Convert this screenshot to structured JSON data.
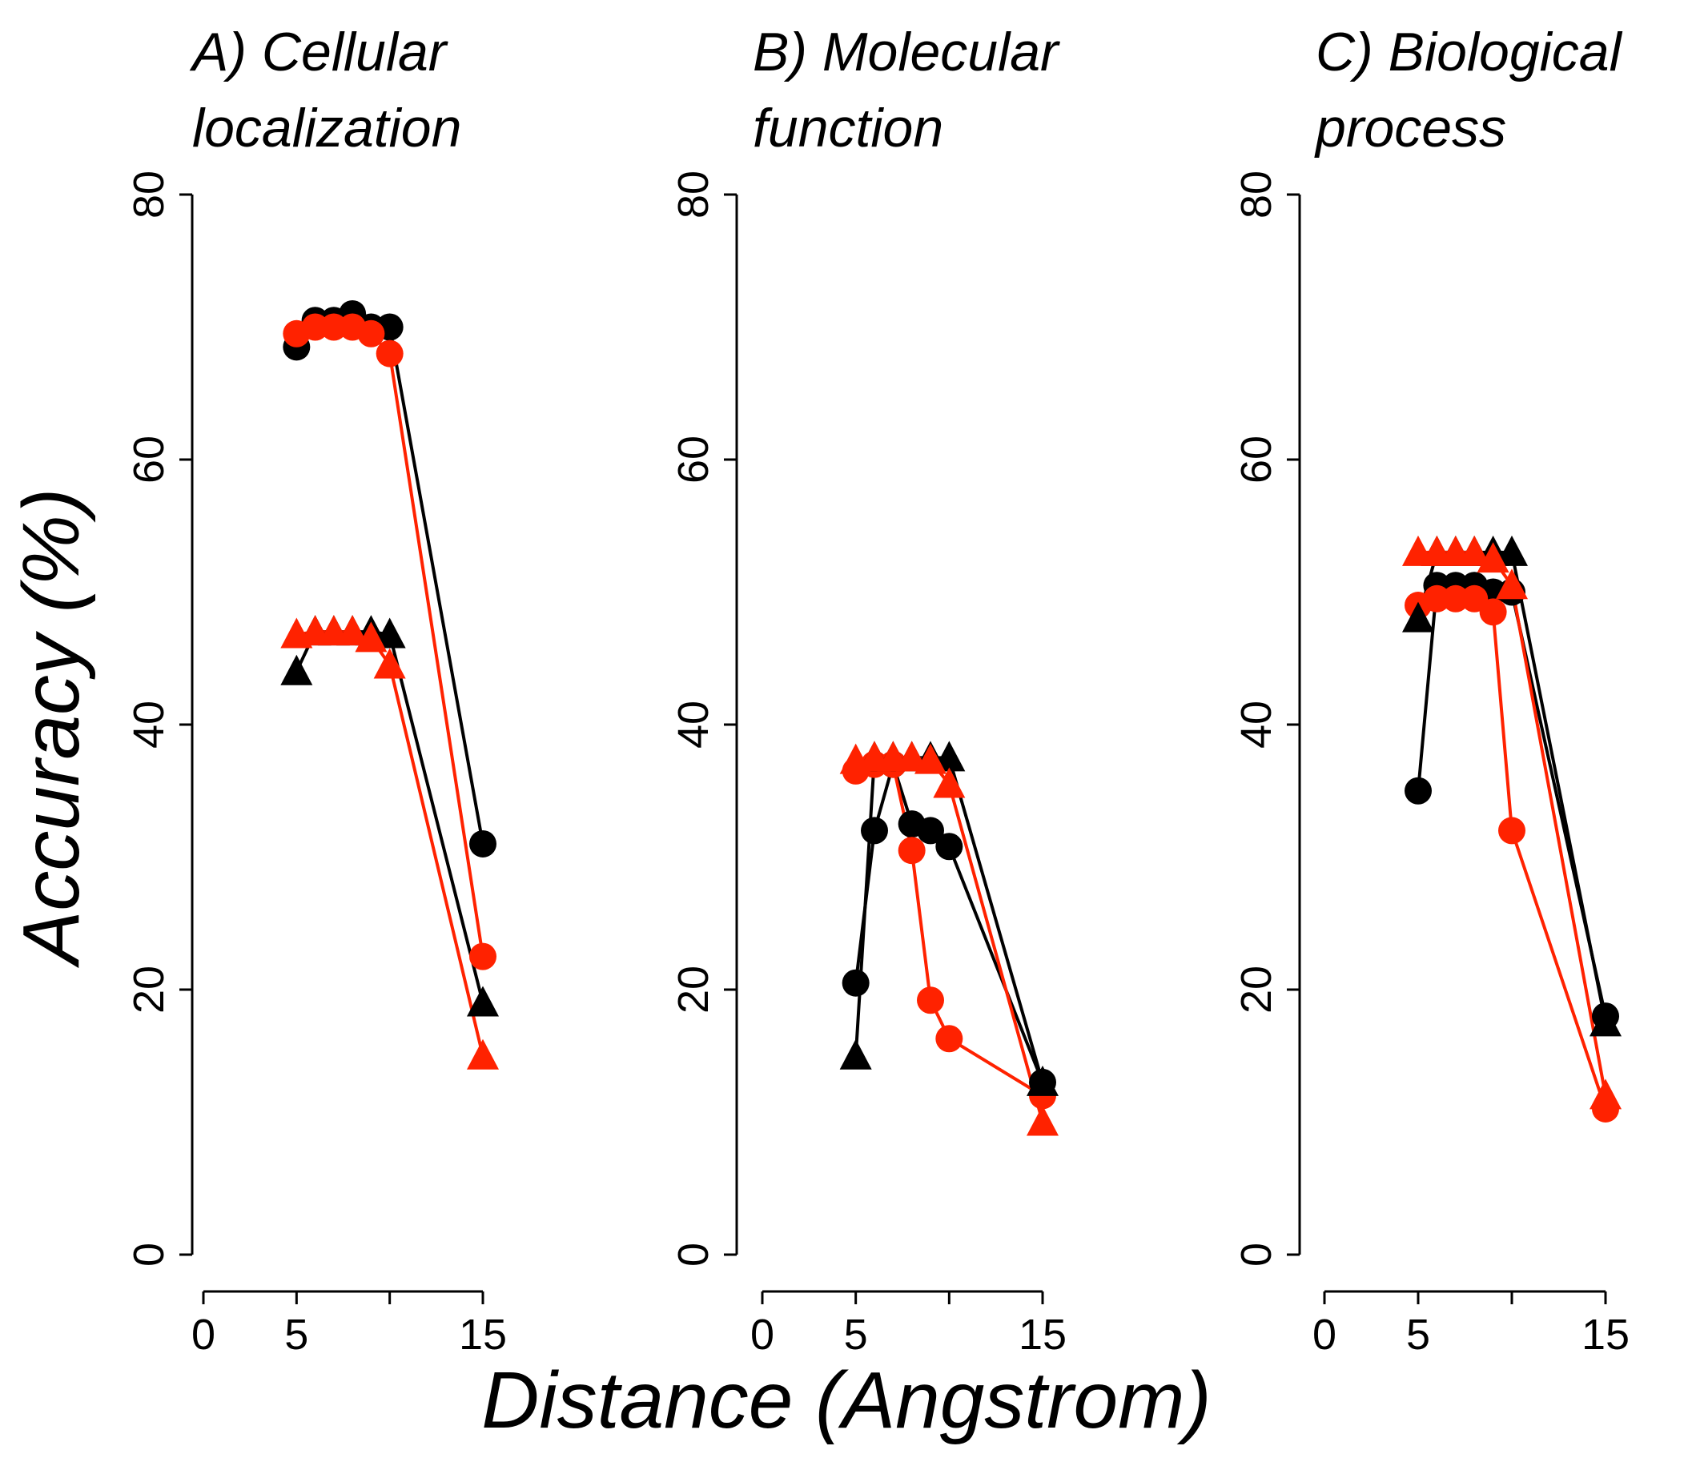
{
  "chart_data": {
    "type": "line",
    "xlabel": "Distance (Angstrom)",
    "ylabel": "Accuracy (%)",
    "xlim": [
      0,
      15
    ],
    "ylim": [
      0,
      80
    ],
    "xticks": [
      0,
      5,
      10,
      15
    ],
    "xtick_labels": [
      "0",
      "5",
      "",
      "15"
    ],
    "yticks": [
      0,
      20,
      40,
      60,
      80
    ],
    "ytick_labels": [
      "0",
      "20",
      "40",
      "60",
      "80"
    ],
    "panels": [
      {
        "title_line1": "A) Cellular",
        "title_line2": "localization",
        "series": [
          {
            "name": "black-circle",
            "color": "#000000",
            "marker": "circle",
            "x": [
              5,
              6,
              7,
              8,
              9,
              10,
              15
            ],
            "y": [
              68.5,
              70.5,
              70.5,
              71,
              70,
              70,
              31
            ]
          },
          {
            "name": "red-circle",
            "color": "#ff2200",
            "marker": "circle",
            "x": [
              5,
              6,
              7,
              8,
              9,
              10,
              15
            ],
            "y": [
              69.5,
              70,
              70,
              70,
              69.5,
              68,
              22.5
            ]
          },
          {
            "name": "black-triangle",
            "color": "#000000",
            "marker": "triangle",
            "x": [
              5,
              6,
              7,
              8,
              9,
              10,
              15
            ],
            "y": [
              44,
              47,
              47,
              47,
              47,
              46.8,
              19
            ]
          },
          {
            "name": "red-triangle",
            "color": "#ff2200",
            "marker": "triangle",
            "x": [
              5,
              6,
              7,
              8,
              9,
              10,
              15
            ],
            "y": [
              46.8,
              47,
              47,
              47,
              46.5,
              44.5,
              15
            ]
          }
        ]
      },
      {
        "title_line1": "B) Molecular",
        "title_line2": "function",
        "series": [
          {
            "name": "black-circle",
            "color": "#000000",
            "marker": "circle",
            "x": [
              5,
              6,
              7,
              8,
              9,
              10,
              15
            ],
            "y": [
              20.5,
              32,
              37,
              32.5,
              32,
              30.8,
              13
            ]
          },
          {
            "name": "red-circle",
            "color": "#ff2200",
            "marker": "circle",
            "x": [
              5,
              6,
              7,
              8,
              9,
              10,
              15
            ],
            "y": [
              36.5,
              37,
              37,
              30.5,
              19.2,
              16.3,
              12
            ]
          },
          {
            "name": "black-triangle",
            "color": "#000000",
            "marker": "triangle",
            "x": [
              5,
              6,
              7,
              8,
              9,
              10,
              15
            ],
            "y": [
              15,
              37.5,
              37.5,
              37.5,
              37.5,
              37.5,
              13
            ]
          },
          {
            "name": "red-triangle",
            "color": "#ff2200",
            "marker": "triangle",
            "x": [
              5,
              6,
              7,
              8,
              9,
              10,
              15
            ],
            "y": [
              37.3,
              37.5,
              37.5,
              37.5,
              37.3,
              35.5,
              10
            ]
          }
        ]
      },
      {
        "title_line1": "C) Biological",
        "title_line2": "process",
        "series": [
          {
            "name": "black-circle",
            "color": "#000000",
            "marker": "circle",
            "x": [
              5,
              6,
              7,
              8,
              9,
              10,
              15
            ],
            "y": [
              35,
              50.5,
              50.5,
              50.5,
              50,
              50,
              18
            ]
          },
          {
            "name": "red-circle",
            "color": "#ff2200",
            "marker": "circle",
            "x": [
              5,
              6,
              7,
              8,
              9,
              10,
              15
            ],
            "y": [
              49,
              49.5,
              49.5,
              49.5,
              48.5,
              32,
              11
            ]
          },
          {
            "name": "black-triangle",
            "color": "#000000",
            "marker": "triangle",
            "x": [
              5,
              6,
              7,
              8,
              9,
              10,
              15
            ],
            "y": [
              48,
              53,
              53,
              53,
              53,
              53,
              17.5
            ]
          },
          {
            "name": "red-triangle",
            "color": "#ff2200",
            "marker": "triangle",
            "x": [
              5,
              6,
              7,
              8,
              9,
              10,
              15
            ],
            "y": [
              53,
              53,
              53,
              53,
              52.5,
              50.5,
              12
            ]
          }
        ]
      }
    ]
  }
}
